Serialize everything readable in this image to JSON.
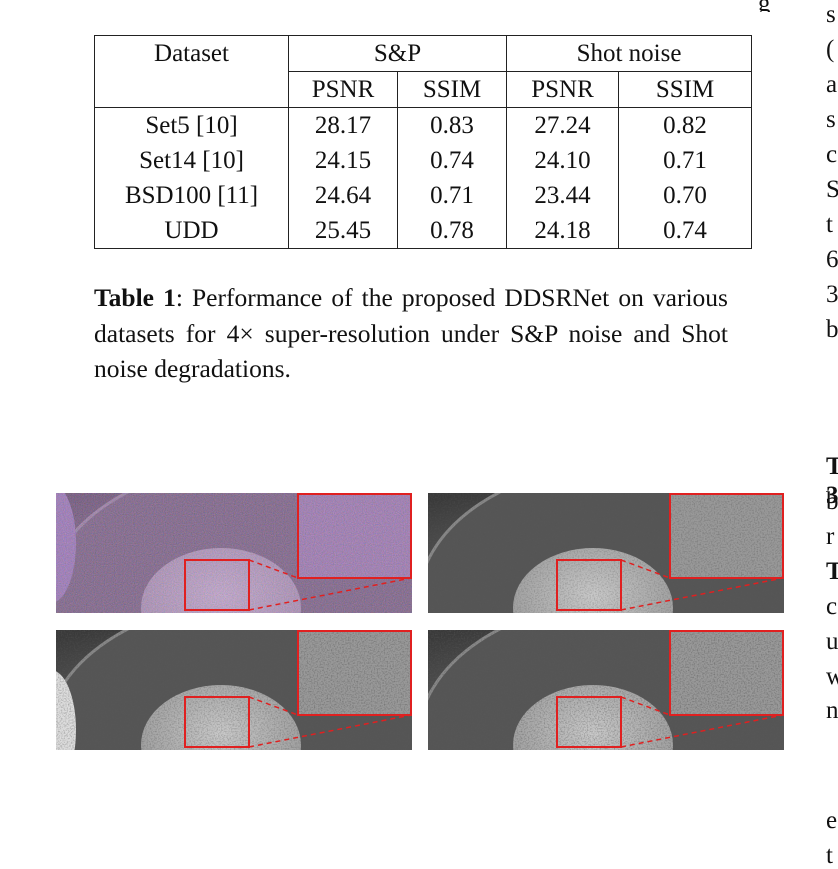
{
  "table": {
    "header": [
      "Dataset",
      "S&P",
      "Shot noise"
    ],
    "subheader": [
      "PSNR",
      "SSIM",
      "PSNR",
      "SSIM"
    ],
    "rows": [
      [
        "Set5 [10]",
        "28.17",
        "0.83",
        "27.24",
        "0.82"
      ],
      [
        "Set14 [10]",
        "24.15",
        "0.74",
        "24.10",
        "0.71"
      ],
      [
        "BSD100 [11]",
        "24.64",
        "0.71",
        "23.44",
        "0.70"
      ],
      [
        "UDD",
        "25.45",
        "0.78",
        "24.18",
        "0.74"
      ]
    ]
  },
  "caption": {
    "label": "Table 1",
    "text": ": Performance of the proposed DDSRNet on various datasets for 4× super-resolution under S&P noise and Shot noise degradations."
  },
  "top_fragment": "g",
  "right_column_fragments": [
    "s",
    "(",
    "a",
    "s",
    "c",
    "S",
    "t",
    "6",
    "3",
    "b",
    "3",
    "T",
    "b",
    "r",
    "T",
    "c",
    "u",
    "w",
    "n",
    "e",
    "t"
  ]
}
